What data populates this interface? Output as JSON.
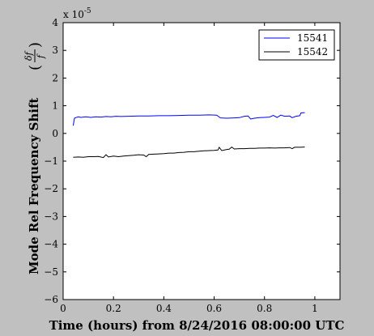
{
  "figure": {
    "background": "#c0c0c0",
    "plot_background": "#ffffff"
  },
  "chart_data": {
    "type": "line",
    "title": "",
    "xlabel": "Time (hours) from 8/24/2016 08:00:00 UTC",
    "ylabel_main": "Mode Rel Frequency Shift",
    "ylabel_frac_num": "δf",
    "ylabel_frac_den": "f",
    "ylabel_open": "(",
    "ylabel_close": ")",
    "y_multiplier_base": "x 10",
    "y_multiplier_exp": "-5",
    "xlim": [
      0,
      1.1
    ],
    "ylim": [
      -6,
      4
    ],
    "xticks": [
      0,
      0.2,
      0.4,
      0.6,
      0.8,
      1
    ],
    "xtick_labels": [
      "0",
      "0.2",
      "0.4",
      "0.6",
      "0.8",
      "1"
    ],
    "yticks": [
      -6,
      -5,
      -4,
      -3,
      -2,
      -1,
      0,
      1,
      2,
      3,
      4
    ],
    "ytick_labels": [
      "−6",
      "−5",
      "−4",
      "−3",
      "−2",
      "−1",
      "0",
      "1",
      "2",
      "3",
      "4"
    ],
    "grid": false,
    "legend_position": "top-right",
    "series": [
      {
        "name": "15541",
        "color": "#0000ff",
        "points": [
          [
            0.04,
            0.28
          ],
          [
            0.045,
            0.55
          ],
          [
            0.05,
            0.57
          ],
          [
            0.06,
            0.6
          ],
          [
            0.07,
            0.58
          ],
          [
            0.09,
            0.6
          ],
          [
            0.11,
            0.58
          ],
          [
            0.13,
            0.6
          ],
          [
            0.15,
            0.59
          ],
          [
            0.17,
            0.61
          ],
          [
            0.19,
            0.6
          ],
          [
            0.21,
            0.62
          ],
          [
            0.23,
            0.61
          ],
          [
            0.26,
            0.62
          ],
          [
            0.3,
            0.63
          ],
          [
            0.34,
            0.63
          ],
          [
            0.38,
            0.64
          ],
          [
            0.42,
            0.64
          ],
          [
            0.46,
            0.65
          ],
          [
            0.5,
            0.66
          ],
          [
            0.54,
            0.66
          ],
          [
            0.58,
            0.67
          ],
          [
            0.61,
            0.66
          ],
          [
            0.625,
            0.56
          ],
          [
            0.65,
            0.55
          ],
          [
            0.68,
            0.56
          ],
          [
            0.7,
            0.57
          ],
          [
            0.72,
            0.62
          ],
          [
            0.735,
            0.63
          ],
          [
            0.745,
            0.52
          ],
          [
            0.76,
            0.55
          ],
          [
            0.78,
            0.57
          ],
          [
            0.8,
            0.58
          ],
          [
            0.82,
            0.59
          ],
          [
            0.835,
            0.65
          ],
          [
            0.85,
            0.58
          ],
          [
            0.865,
            0.66
          ],
          [
            0.88,
            0.62
          ],
          [
            0.9,
            0.63
          ],
          [
            0.91,
            0.57
          ],
          [
            0.925,
            0.62
          ],
          [
            0.94,
            0.64
          ],
          [
            0.945,
            0.74
          ],
          [
            0.96,
            0.75
          ]
        ]
      },
      {
        "name": "15542",
        "color": "#000000",
        "points": [
          [
            0.04,
            -0.86
          ],
          [
            0.06,
            -0.85
          ],
          [
            0.08,
            -0.86
          ],
          [
            0.1,
            -0.84
          ],
          [
            0.12,
            -0.84
          ],
          [
            0.14,
            -0.83
          ],
          [
            0.16,
            -0.87
          ],
          [
            0.17,
            -0.77
          ],
          [
            0.18,
            -0.85
          ],
          [
            0.2,
            -0.82
          ],
          [
            0.22,
            -0.84
          ],
          [
            0.24,
            -0.82
          ],
          [
            0.26,
            -0.8
          ],
          [
            0.28,
            -0.79
          ],
          [
            0.3,
            -0.77
          ],
          [
            0.32,
            -0.78
          ],
          [
            0.33,
            -0.84
          ],
          [
            0.34,
            -0.76
          ],
          [
            0.36,
            -0.75
          ],
          [
            0.38,
            -0.74
          ],
          [
            0.4,
            -0.73
          ],
          [
            0.42,
            -0.71
          ],
          [
            0.44,
            -0.71
          ],
          [
            0.46,
            -0.69
          ],
          [
            0.48,
            -0.68
          ],
          [
            0.5,
            -0.66
          ],
          [
            0.52,
            -0.66
          ],
          [
            0.54,
            -0.64
          ],
          [
            0.56,
            -0.63
          ],
          [
            0.58,
            -0.62
          ],
          [
            0.6,
            -0.61
          ],
          [
            0.615,
            -0.6
          ],
          [
            0.62,
            -0.5
          ],
          [
            0.63,
            -0.62
          ],
          [
            0.65,
            -0.58
          ],
          [
            0.66,
            -0.57
          ],
          [
            0.67,
            -0.49
          ],
          [
            0.68,
            -0.56
          ],
          [
            0.7,
            -0.55
          ],
          [
            0.72,
            -0.55
          ],
          [
            0.74,
            -0.54
          ],
          [
            0.76,
            -0.54
          ],
          [
            0.78,
            -0.53
          ],
          [
            0.8,
            -0.53
          ],
          [
            0.82,
            -0.52
          ],
          [
            0.84,
            -0.53
          ],
          [
            0.86,
            -0.52
          ],
          [
            0.88,
            -0.52
          ],
          [
            0.9,
            -0.51
          ],
          [
            0.91,
            -0.55
          ],
          [
            0.92,
            -0.5
          ],
          [
            0.94,
            -0.5
          ],
          [
            0.96,
            -0.49
          ]
        ]
      }
    ]
  }
}
